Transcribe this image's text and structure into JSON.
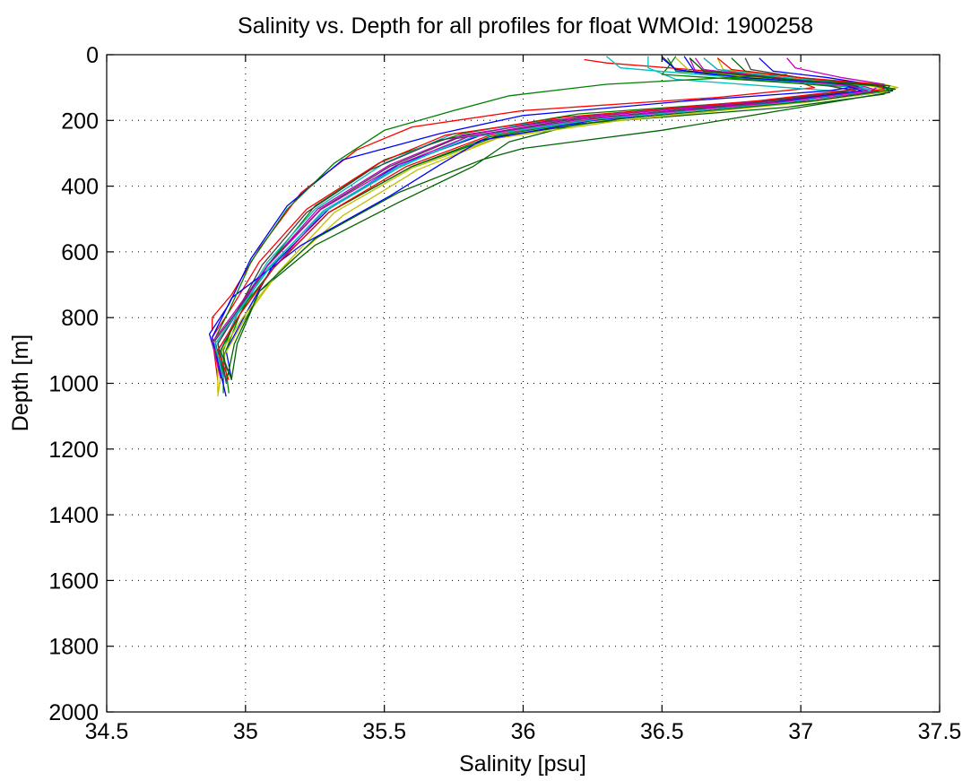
{
  "chart_data": {
    "type": "line",
    "title": "Salinity vs. Depth for all profiles for float WMOId: 1900258",
    "xlabel": "Salinity [psu]",
    "ylabel": "Depth [m]",
    "xlim": [
      34.5,
      37.5
    ],
    "ylim": [
      0,
      2000
    ],
    "y_reversed": true,
    "grid": true,
    "x_tick_labels": [
      "34.5",
      "35",
      "35.5",
      "36",
      "36.5",
      "37",
      "37.5"
    ],
    "y_tick_labels": [
      "0",
      "200",
      "400",
      "600",
      "800",
      "1000",
      "1200",
      "1400",
      "1600",
      "1800",
      "2000"
    ],
    "colors": [
      "#0000ff",
      "#008000",
      "#ff0000",
      "#00bfbf",
      "#bf00bf",
      "#bfbf00",
      "#404040",
      "#006400"
    ],
    "series": [
      {
        "color": "#0000ff",
        "x": [
          36.58,
          36.62,
          36.95,
          37.28,
          37.33,
          37.05,
          36.3,
          35.85,
          35.55,
          35.3,
          35.1,
          35.0,
          34.93,
          34.95
        ],
        "y": [
          5,
          55,
          75,
          95,
          110,
          140,
          190,
          245,
          335,
          470,
          640,
          790,
          900,
          990
        ]
      },
      {
        "color": "#008000",
        "x": [
          36.52,
          36.55,
          36.9,
          37.25,
          37.3,
          36.95,
          36.2,
          35.78,
          35.5,
          35.25,
          35.08,
          34.98,
          34.92,
          34.92
        ],
        "y": [
          10,
          50,
          70,
          90,
          105,
          135,
          180,
          240,
          320,
          460,
          640,
          790,
          920,
          1030
        ]
      },
      {
        "color": "#ff0000",
        "x": [
          36.22,
          36.3,
          36.6,
          36.95,
          37.05,
          36.7,
          36.0,
          35.6,
          35.4,
          35.2,
          35.05,
          34.95,
          34.88,
          34.88
        ],
        "y": [
          15,
          25,
          45,
          70,
          100,
          130,
          170,
          220,
          290,
          420,
          590,
          730,
          800,
          840
        ]
      },
      {
        "color": "#00bfbf",
        "x": [
          36.45,
          36.45,
          36.55,
          36.95,
          37.2,
          36.85,
          36.2,
          35.75,
          35.5,
          35.25,
          35.08,
          34.97,
          34.9,
          34.92
        ],
        "y": [
          5,
          40,
          75,
          100,
          115,
          145,
          190,
          240,
          330,
          470,
          630,
          780,
          870,
          980
        ]
      },
      {
        "color": "#bf00bf",
        "x": [
          36.6,
          36.62,
          36.85,
          37.22,
          37.28,
          37.0,
          36.3,
          35.82,
          35.55,
          35.28,
          35.1,
          34.98,
          34.9,
          34.95
        ],
        "y": [
          10,
          50,
          75,
          95,
          110,
          140,
          195,
          250,
          340,
          480,
          650,
          790,
          900,
          985
        ]
      },
      {
        "color": "#bfbf00",
        "x": [
          36.7,
          36.72,
          37.0,
          37.3,
          37.35,
          37.05,
          36.4,
          35.92,
          35.62,
          35.35,
          35.12,
          35.0,
          34.92,
          34.9
        ],
        "y": [
          10,
          45,
          70,
          90,
          100,
          130,
          185,
          250,
          350,
          490,
          660,
          800,
          920,
          1040
        ]
      },
      {
        "color": "#404040",
        "x": [
          36.5,
          36.55,
          36.75,
          37.1,
          37.2,
          36.8,
          36.1,
          35.7,
          35.45,
          35.22,
          35.06,
          34.97,
          34.89,
          34.92
        ],
        "y": [
          5,
          45,
          70,
          95,
          110,
          145,
          200,
          260,
          350,
          480,
          640,
          780,
          870,
          980
        ]
      },
      {
        "color": "#006400",
        "x": [
          36.75,
          36.8,
          37.05,
          37.32,
          37.3,
          36.95,
          36.2,
          35.95,
          35.82,
          35.55,
          35.25,
          35.05,
          34.96,
          34.93
        ],
        "y": [
          10,
          50,
          75,
          95,
          120,
          160,
          210,
          265,
          340,
          450,
          580,
          720,
          880,
          1000
        ]
      },
      {
        "color": "#0000ff",
        "x": [
          36.85,
          36.9,
          37.1,
          37.25,
          37.1,
          36.6,
          36.0,
          35.7,
          35.35,
          35.15,
          35.02,
          34.94,
          34.87,
          34.92
        ],
        "y": [
          10,
          50,
          70,
          90,
          110,
          140,
          185,
          240,
          320,
          460,
          620,
          760,
          850,
          1000
        ]
      },
      {
        "color": "#008000",
        "x": [
          36.55,
          36.52,
          36.5,
          36.95,
          37.22,
          37.0,
          36.3,
          35.88,
          35.6,
          35.3,
          35.1,
          34.97,
          34.92,
          34.94
        ],
        "y": [
          5,
          40,
          60,
          85,
          100,
          135,
          190,
          250,
          340,
          480,
          650,
          790,
          900,
          1030
        ]
      },
      {
        "color": "#ff0000",
        "x": [
          36.65,
          36.7,
          36.85,
          37.15,
          37.2,
          36.85,
          36.15,
          35.72,
          35.48,
          35.22,
          35.05,
          34.95,
          34.88,
          34.9
        ],
        "y": [
          10,
          45,
          65,
          90,
          105,
          140,
          190,
          245,
          330,
          470,
          630,
          770,
          860,
          990
        ]
      },
      {
        "color": "#00bfbf",
        "x": [
          36.3,
          36.35,
          36.7,
          37.1,
          37.25,
          36.95,
          36.25,
          35.8,
          35.55,
          35.28,
          35.08,
          34.97,
          34.91,
          34.93
        ],
        "y": [
          5,
          40,
          65,
          90,
          105,
          140,
          195,
          250,
          345,
          480,
          650,
          790,
          900,
          1000
        ]
      },
      {
        "color": "#bf00bf",
        "x": [
          36.95,
          36.98,
          37.15,
          37.3,
          37.25,
          36.9,
          36.2,
          35.78,
          35.52,
          35.26,
          35.08,
          34.97,
          34.9,
          34.93
        ],
        "y": [
          10,
          40,
          70,
          90,
          110,
          140,
          190,
          245,
          335,
          470,
          640,
          785,
          880,
          995
        ]
      },
      {
        "color": "#bfbf00",
        "x": [
          36.55,
          36.6,
          36.9,
          37.25,
          37.32,
          37.02,
          36.35,
          35.9,
          35.6,
          35.32,
          35.12,
          34.99,
          34.9,
          34.9
        ],
        "y": [
          10,
          50,
          75,
          95,
          110,
          145,
          200,
          255,
          345,
          480,
          660,
          800,
          920,
          1030
        ]
      },
      {
        "color": "#404040",
        "x": [
          36.8,
          36.82,
          37.0,
          37.2,
          37.15,
          36.8,
          36.15,
          35.76,
          35.52,
          35.27,
          35.08,
          34.97,
          34.9,
          34.93
        ],
        "y": [
          10,
          45,
          70,
          95,
          115,
          150,
          200,
          255,
          340,
          470,
          640,
          780,
          880,
          990
        ]
      },
      {
        "color": "#006400",
        "x": [
          36.6,
          36.65,
          36.95,
          37.28,
          37.34,
          37.05,
          36.35,
          35.9,
          35.6,
          35.3,
          35.1,
          34.98,
          34.91,
          34.95
        ],
        "y": [
          10,
          50,
          75,
          95,
          105,
          140,
          195,
          250,
          340,
          480,
          650,
          790,
          900,
          990
        ]
      },
      {
        "color": "#0000ff",
        "x": [
          36.5,
          36.55,
          36.8,
          37.15,
          37.22,
          36.9,
          36.25,
          35.85,
          35.7,
          35.52,
          35.2,
          34.95,
          34.88,
          34.93
        ],
        "y": [
          10,
          45,
          70,
          90,
          110,
          145,
          200,
          260,
          335,
          430,
          580,
          740,
          860,
          1040
        ]
      },
      {
        "color": "#008000",
        "x": [
          36.95,
          36.3,
          35.95,
          35.75,
          35.5,
          35.32,
          35.15,
          35.02,
          34.94,
          34.88,
          34.92
        ],
        "y": [
          60,
          90,
          125,
          170,
          230,
          330,
          470,
          630,
          780,
          880,
          960
        ]
      },
      {
        "color": "#ff0000",
        "x": [
          36.7,
          36.75,
          37.0,
          37.28,
          37.3,
          36.98,
          36.3,
          35.88,
          35.58,
          35.3,
          35.1,
          34.98,
          34.9,
          34.94
        ],
        "y": [
          10,
          45,
          70,
          90,
          105,
          140,
          190,
          245,
          340,
          480,
          650,
          790,
          900,
          990
        ]
      },
      {
        "color": "#00bfbf",
        "x": [
          36.65,
          36.7,
          36.95,
          37.2,
          37.25,
          36.95,
          36.28,
          35.82,
          35.55,
          35.28,
          35.09,
          34.97,
          34.89,
          34.92
        ],
        "y": [
          10,
          45,
          70,
          90,
          110,
          145,
          195,
          250,
          340,
          475,
          645,
          785,
          880,
          985
        ]
      },
      {
        "color": "#bf00bf",
        "x": [
          36.62,
          36.65,
          36.9,
          37.18,
          37.24,
          36.92,
          36.22,
          35.8,
          35.54,
          35.27,
          35.08,
          34.96,
          34.88,
          34.91
        ],
        "y": [
          10,
          45,
          70,
          95,
          110,
          145,
          195,
          250,
          338,
          472,
          642,
          784,
          875,
          985
        ]
      },
      {
        "color": "#006400",
        "x": [
          36.6,
          36.65,
          36.95,
          37.3,
          37.32,
          37.0,
          36.5,
          36.0,
          35.85,
          35.55,
          35.25,
          35.05,
          34.97,
          34.95
        ],
        "y": [
          10,
          50,
          75,
          95,
          115,
          160,
          230,
          285,
          320,
          420,
          560,
          720,
          880,
          985
        ]
      }
    ]
  }
}
